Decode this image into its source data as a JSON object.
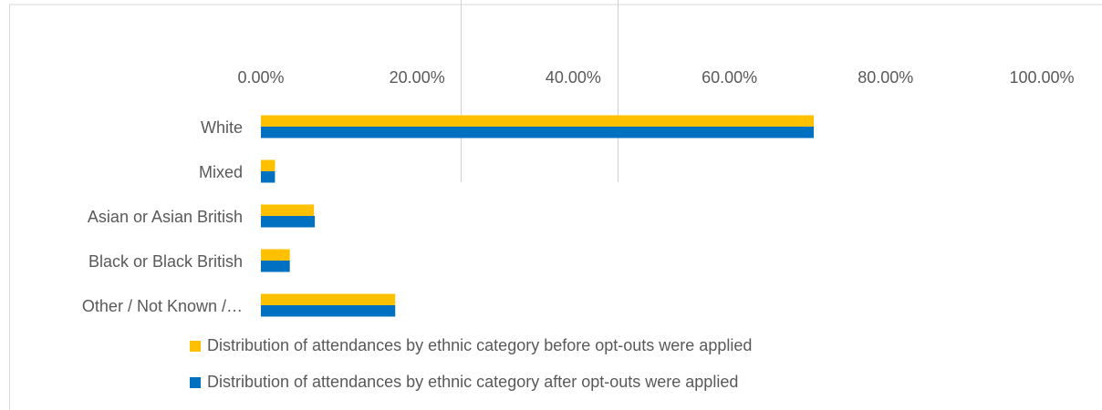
{
  "chart_data": {
    "type": "bar",
    "orientation": "horizontal",
    "categories": [
      "White",
      "Mixed",
      "Asian or Asian British",
      "Black or Black British",
      "Other / Not Known /…"
    ],
    "series": [
      {
        "name": "Distribution of attendances by ethnic category before opt-outs were applied",
        "color": "#ffc000",
        "values": [
          70.8,
          1.8,
          6.8,
          3.7,
          17.2
        ]
      },
      {
        "name": "Distribution of attendances by ethnic category after opt-outs were applied",
        "color": "#0070c0",
        "values": [
          70.8,
          1.8,
          6.9,
          3.7,
          17.2
        ]
      }
    ],
    "xlim": [
      0,
      100
    ],
    "xticks": [
      {
        "value": 0,
        "label": "0.00%"
      },
      {
        "value": 20,
        "label": "20.00%"
      },
      {
        "value": 40,
        "label": "40.00%"
      },
      {
        "value": 60,
        "label": "60.00%"
      },
      {
        "value": 80,
        "label": "80.00%"
      },
      {
        "value": 100,
        "label": "100.00%"
      }
    ],
    "legend": "bottom"
  }
}
